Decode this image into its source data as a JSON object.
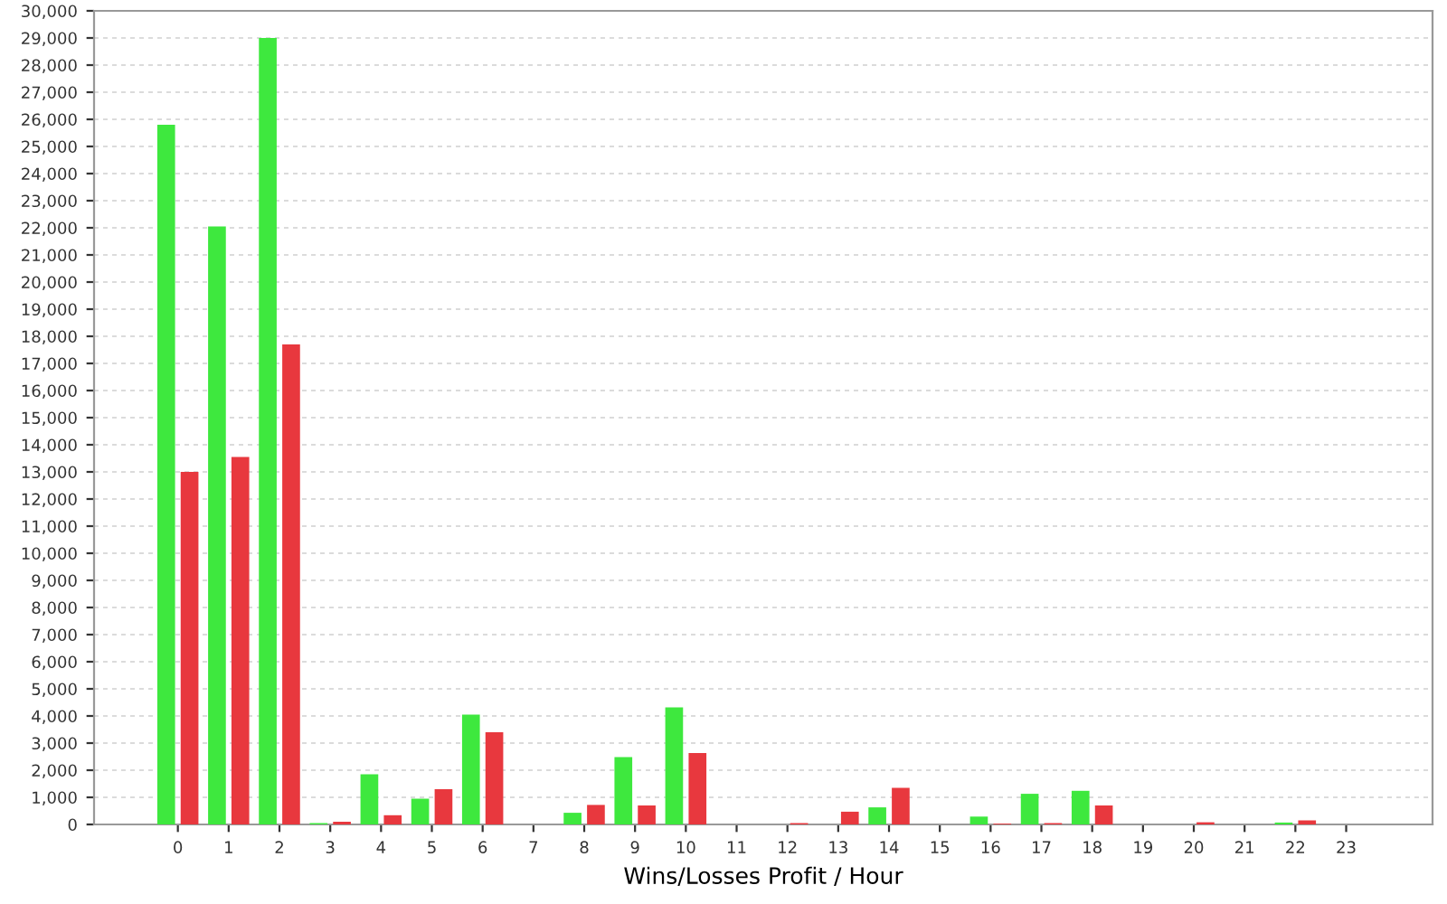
{
  "chart_data": {
    "type": "bar",
    "xlabel": "Wins/Losses Profit / Hour",
    "categories": [
      "0",
      "1",
      "2",
      "3",
      "4",
      "5",
      "6",
      "7",
      "8",
      "9",
      "10",
      "11",
      "12",
      "13",
      "14",
      "15",
      "16",
      "17",
      "18",
      "19",
      "20",
      "21",
      "22",
      "23"
    ],
    "series": [
      {
        "color": "#3ee83e",
        "values": [
          25800,
          22050,
          29000,
          50,
          1850,
          950,
          4050,
          0,
          430,
          2480,
          4320,
          0,
          0,
          0,
          630,
          0,
          290,
          1130,
          1240,
          0,
          0,
          0,
          70,
          0
        ]
      },
      {
        "color": "#e8383e",
        "values": [
          13000,
          13550,
          17700,
          100,
          340,
          1300,
          3400,
          0,
          720,
          700,
          2630,
          0,
          50,
          470,
          1350,
          0,
          30,
          50,
          700,
          0,
          80,
          0,
          150,
          0
        ]
      }
    ],
    "ylim": [
      0,
      30000
    ],
    "yticks": [
      {
        "value": 0,
        "label": "0"
      },
      {
        "value": 1000,
        "label": "1,000"
      },
      {
        "value": 2000,
        "label": "2,000"
      },
      {
        "value": 3000,
        "label": "3,000"
      },
      {
        "value": 4000,
        "label": "4,000"
      },
      {
        "value": 5000,
        "label": "5,000"
      },
      {
        "value": 6000,
        "label": "6,000"
      },
      {
        "value": 7000,
        "label": "7,000"
      },
      {
        "value": 8000,
        "label": "8,000"
      },
      {
        "value": 9000,
        "label": "9,000"
      },
      {
        "value": 10000,
        "label": "10,000"
      },
      {
        "value": 11000,
        "label": "11,000"
      },
      {
        "value": 12000,
        "label": "12,000"
      },
      {
        "value": 13000,
        "label": "13,000"
      },
      {
        "value": 14000,
        "label": "14,000"
      },
      {
        "value": 15000,
        "label": "15,000"
      },
      {
        "value": 16000,
        "label": "16,000"
      },
      {
        "value": 17000,
        "label": "17,000"
      },
      {
        "value": 18000,
        "label": "18,000"
      },
      {
        "value": 19000,
        "label": "19,000"
      },
      {
        "value": 20000,
        "label": "20,000"
      },
      {
        "value": 21000,
        "label": "21,000"
      },
      {
        "value": 22000,
        "label": "22,000"
      },
      {
        "value": 23000,
        "label": "23,000"
      },
      {
        "value": 24000,
        "label": "24,000"
      },
      {
        "value": 25000,
        "label": "25,000"
      },
      {
        "value": 26000,
        "label": "26,000"
      },
      {
        "value": 27000,
        "label": "27,000"
      },
      {
        "value": 28000,
        "label": "28,000"
      },
      {
        "value": 29000,
        "label": "29,000"
      },
      {
        "value": 30000,
        "label": "30,000"
      }
    ],
    "grid": "y"
  }
}
